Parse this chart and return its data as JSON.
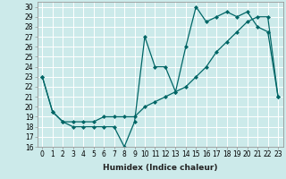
{
  "xlabel": "Humidex (Indice chaleur)",
  "bg_color": "#cceaea",
  "grid_color": "#ffffff",
  "line_color": "#006666",
  "xlim": [
    -0.5,
    23.5
  ],
  "ylim": [
    16,
    30.5
  ],
  "yticks": [
    16,
    17,
    18,
    19,
    20,
    21,
    22,
    23,
    24,
    25,
    26,
    27,
    28,
    29,
    30
  ],
  "xticks": [
    0,
    1,
    2,
    3,
    4,
    5,
    6,
    7,
    8,
    9,
    10,
    11,
    12,
    13,
    14,
    15,
    16,
    17,
    18,
    19,
    20,
    21,
    22,
    23
  ],
  "series1_x": [
    0,
    1,
    2,
    3,
    4,
    5,
    6,
    7,
    8,
    9,
    10,
    11,
    12,
    13,
    14,
    15,
    16,
    17,
    18,
    19,
    20,
    21,
    22,
    23
  ],
  "series1_y": [
    23.0,
    19.5,
    18.5,
    18.0,
    18.0,
    18.0,
    18.0,
    18.0,
    16.0,
    18.5,
    27.0,
    24.0,
    24.0,
    21.5,
    26.0,
    30.0,
    28.5,
    29.0,
    29.5,
    29.0,
    29.5,
    28.0,
    27.5,
    21.0
  ],
  "series2_x": [
    0,
    1,
    2,
    3,
    4,
    5,
    6,
    7,
    8,
    9,
    10,
    11,
    12,
    13,
    14,
    15,
    16,
    17,
    18,
    19,
    20,
    21,
    22,
    23
  ],
  "series2_y": [
    23.0,
    19.5,
    18.5,
    18.5,
    18.5,
    18.5,
    19.0,
    19.0,
    19.0,
    19.0,
    20.0,
    20.5,
    21.0,
    21.5,
    22.0,
    23.0,
    24.0,
    25.5,
    26.5,
    27.5,
    28.5,
    29.0,
    29.0,
    21.0
  ],
  "marker": "D",
  "marker_size": 2.0,
  "linewidth": 0.9,
  "tick_fontsize": 5.5,
  "label_fontsize": 6.5
}
